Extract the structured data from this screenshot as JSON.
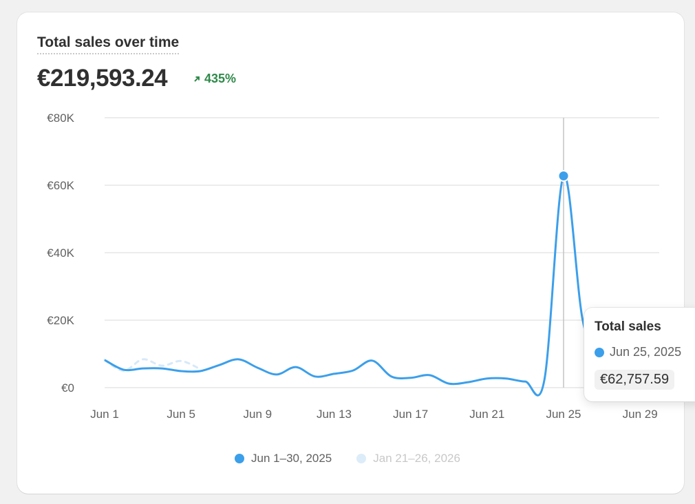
{
  "card": {
    "title": "Total sales over time",
    "total": "€219,593.24",
    "delta": "435%",
    "delta_icon": "arrow-up-right-icon"
  },
  "colors": {
    "primary": "#3c9fea",
    "comparison": "#d6e9f9",
    "positive": "#2f8a4a",
    "grid": "#e6e6e6"
  },
  "chart_data": {
    "type": "line",
    "title": "Total sales over time",
    "xlabel": "",
    "ylabel": "",
    "ylim": [
      0,
      80000
    ],
    "y_ticks": [
      0,
      20000,
      40000,
      60000,
      80000
    ],
    "y_tick_labels": [
      "€0",
      "€20K",
      "€40K",
      "€60K",
      "€80K"
    ],
    "x_tick_labels": [
      "Jun 1",
      "Jun 5",
      "Jun 9",
      "Jun 13",
      "Jun 17",
      "Jun 21",
      "Jun 25",
      "Jun 29"
    ],
    "x_tick_days": [
      1,
      5,
      9,
      13,
      17,
      21,
      25,
      29
    ],
    "days": 30,
    "grid": true,
    "legend_position": "bottom-center",
    "series": [
      {
        "name": "Jun 1–30, 2025",
        "style": "solid",
        "values": [
          8200,
          5300,
          5700,
          5700,
          4900,
          4900,
          6700,
          8400,
          5900,
          3900,
          6100,
          3300,
          4100,
          5100,
          8000,
          3300,
          2900,
          3700,
          1200,
          1600,
          2700,
          2700,
          1800,
          2400,
          62757.59,
          20000,
          6000,
          5000,
          4000,
          3000
        ]
      },
      {
        "name": "Jan 21–26, 2026",
        "style": "dashed",
        "values": [
          8200,
          5000,
          8400,
          6500,
          7900,
          5500
        ]
      }
    ],
    "highlight": {
      "index": 24,
      "label": "Total sales",
      "date": "Jun 25, 2025",
      "value": "€62,757.59"
    }
  }
}
